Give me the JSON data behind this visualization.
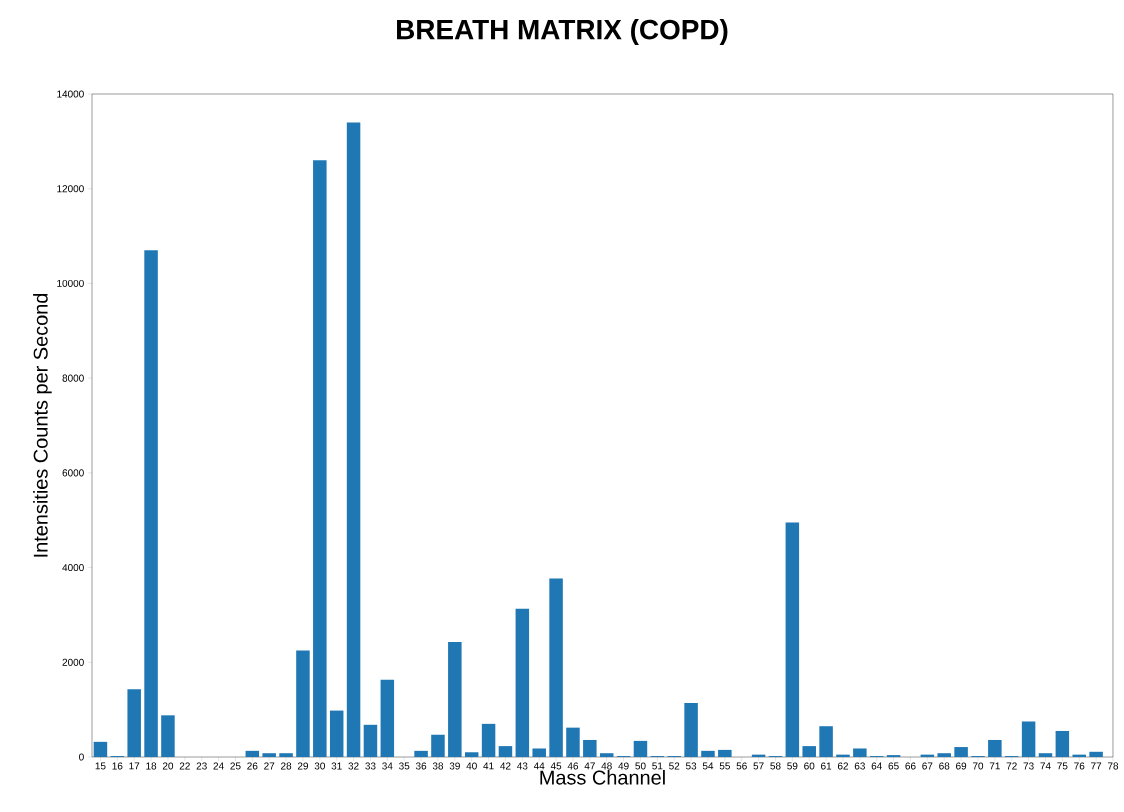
{
  "chart_data": {
    "type": "bar",
    "title": "BREATH MATRIX (COPD)",
    "xlabel": "Mass Channel",
    "ylabel": "Intensities Counts per Second",
    "categories": [
      "15",
      "16",
      "17",
      "18",
      "20",
      "22",
      "23",
      "24",
      "25",
      "26",
      "27",
      "28",
      "29",
      "30",
      "31",
      "32",
      "33",
      "34",
      "35",
      "36",
      "38",
      "39",
      "40",
      "41",
      "42",
      "43",
      "44",
      "45",
      "46",
      "47",
      "48",
      "49",
      "50",
      "51",
      "52",
      "53",
      "54",
      "55",
      "56",
      "57",
      "58",
      "59",
      "60",
      "61",
      "62",
      "63",
      "64",
      "65",
      "66",
      "67",
      "68",
      "69",
      "70",
      "71",
      "72",
      "73",
      "74",
      "75",
      "76",
      "77",
      "78"
    ],
    "values": [
      320,
      20,
      1430,
      10700,
      880,
      0,
      0,
      0,
      0,
      130,
      80,
      80,
      2250,
      12600,
      980,
      13400,
      680,
      1630,
      0,
      130,
      470,
      2430,
      100,
      700,
      230,
      3130,
      180,
      3770,
      620,
      360,
      80,
      20,
      340,
      20,
      20,
      1140,
      130,
      150,
      0,
      50,
      20,
      4950,
      230,
      650,
      50,
      180,
      20,
      40,
      0,
      50,
      80,
      210,
      20,
      360,
      20,
      750,
      80,
      550,
      50,
      110,
      0
    ],
    "color": "#1f77b4",
    "ylim": [
      0,
      14000
    ],
    "yticks": [
      0,
      2000,
      4000,
      6000,
      8000,
      10000,
      12000,
      14000
    ],
    "grid": false
  }
}
